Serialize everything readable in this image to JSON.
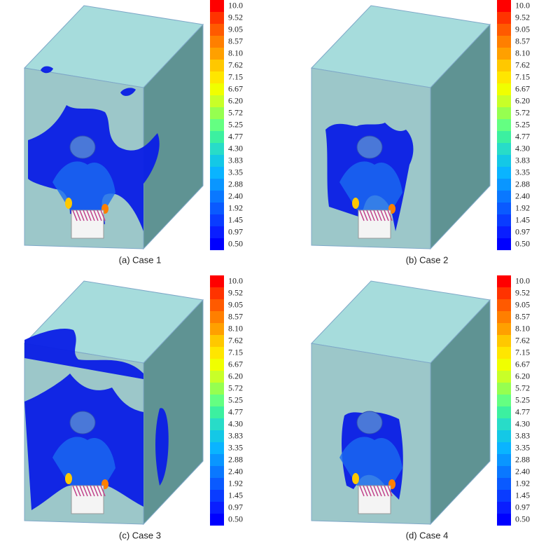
{
  "panels": [
    {
      "caption": "(a) Case 1",
      "legend_labels": [
        "10.0",
        "9.52",
        "9.05",
        "8.57",
        "8.10",
        "7.62",
        "7.15",
        "6.67",
        "6.20",
        "5.72",
        "5.25",
        "4.77",
        "4.30",
        "3.83",
        "3.35",
        "2.88",
        "2.40",
        "1.92",
        "1.45",
        "0.97",
        "0.50"
      ]
    },
    {
      "caption": "(b) Case 2",
      "legend_labels": [
        "10.0",
        "9.52",
        "9.05",
        "8.57",
        "8.10",
        "7.62",
        "7.15",
        "6.67",
        "6.20",
        "5.72",
        "5.25",
        "4.77",
        "4.30",
        "3.83",
        "3.35",
        "2.88",
        "2.40",
        "1.92",
        "1.45",
        "0.97",
        "0.50"
      ]
    },
    {
      "caption": "(c) Case 3",
      "legend_labels": [
        "10.0",
        "9.52",
        "9.05",
        "8.57",
        "8.10",
        "7.62",
        "7.15",
        "6.67",
        "6.20",
        "5.72",
        "5.25",
        "4.77",
        "4.30",
        "3.83",
        "3.35",
        "2.88",
        "2.40",
        "1.92",
        "1.45",
        "0.97",
        "0.50"
      ]
    },
    {
      "caption": "(d) Case 4",
      "legend_labels": [
        "10.0",
        "9.52",
        "9.05",
        "8.57",
        "8.10",
        "7.62",
        "7.15",
        "6.67",
        "6.20",
        "5.72",
        "5.25",
        "4.77",
        "4.30",
        "3.83",
        "3.35",
        "2.88",
        "2.40",
        "1.92",
        "1.45",
        "0.97",
        "0.50"
      ]
    }
  ]
}
